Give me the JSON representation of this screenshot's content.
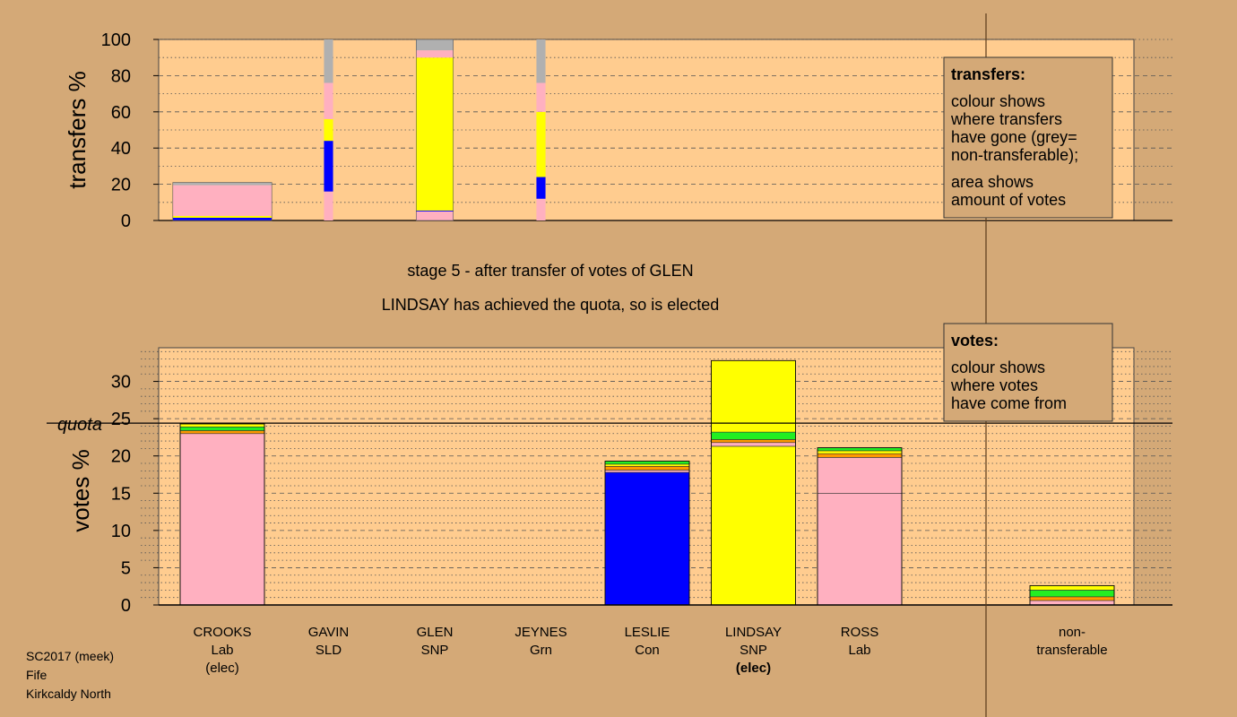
{
  "stage_title": "stage 5 - after transfer of votes of GLEN",
  "stage_subtitle": "LINDSAY has achieved the quota, so is elected",
  "footer": [
    "SC2017 (meek)",
    "Fife",
    "Kirkcaldy North"
  ],
  "colors": {
    "page": "#d4a977",
    "plot": "#ffcc8f",
    "Lab": "#ffb0c0",
    "SNP": "#ffff00",
    "Con": "#0000ff",
    "Grn": "#22ee22",
    "SLD": "#ff9900",
    "nontransferable": "#b0b0b0"
  },
  "chart_data": [
    {
      "id": "transfers",
      "type": "bar",
      "stacked": true,
      "ylabel": "transfers %",
      "ylim": [
        0,
        100
      ],
      "yticks": [
        0,
        20,
        40,
        60,
        80,
        100
      ],
      "grid": true,
      "legend": {
        "placement": "top-right",
        "title": "transfers:",
        "lines": [
          "colour shows",
          "where transfers",
          "have gone (grey=",
          "non-transferable);",
          "",
          "area shows",
          "amount of votes"
        ]
      },
      "bars": [
        {
          "candidate": "CROOKS",
          "width_votes_pct": 24.0,
          "segments": [
            {
              "party": "Con",
              "from": 0,
              "to": 1.5
            },
            {
              "party": "SNP",
              "from": 1.5,
              "to": 2.5
            },
            {
              "party": "Lab",
              "from": 2.5,
              "to": 19.5
            },
            {
              "party": "nontransferable",
              "from": 19.5,
              "to": 21
            }
          ]
        },
        {
          "candidate": "GAVIN",
          "width_votes_pct": 2.2,
          "segments": [
            {
              "party": "Lab",
              "from": 0,
              "to": 16
            },
            {
              "party": "Con",
              "from": 16,
              "to": 44
            },
            {
              "party": "SNP",
              "from": 44,
              "to": 56
            },
            {
              "party": "Lab",
              "from": 56,
              "to": 76
            },
            {
              "party": "nontransferable",
              "from": 76,
              "to": 100
            }
          ]
        },
        {
          "candidate": "GLEN",
          "width_votes_pct": 9.0,
          "segments": [
            {
              "party": "Lab",
              "from": 0,
              "to": 5
            },
            {
              "party": "Con",
              "from": 5,
              "to": 5.5
            },
            {
              "party": "SNP",
              "from": 5.5,
              "to": 90
            },
            {
              "party": "Lab",
              "from": 90,
              "to": 94
            },
            {
              "party": "nontransferable",
              "from": 94,
              "to": 100
            }
          ]
        },
        {
          "candidate": "JEYNES",
          "width_votes_pct": 2.2,
          "segments": [
            {
              "party": "Lab",
              "from": 0,
              "to": 12
            },
            {
              "party": "Con",
              "from": 12,
              "to": 24
            },
            {
              "party": "SNP",
              "from": 24,
              "to": 60
            },
            {
              "party": "Lab",
              "from": 60,
              "to": 76
            },
            {
              "party": "nontransferable",
              "from": 76,
              "to": 100
            }
          ]
        }
      ]
    },
    {
      "id": "votes",
      "type": "bar",
      "stacked": true,
      "ylabel": "votes %",
      "ylim": [
        0,
        35
      ],
      "yticks": [
        0,
        5,
        10,
        15,
        20,
        25,
        30
      ],
      "quota": 24.4,
      "quota_label": "quota",
      "grid": true,
      "legend": {
        "placement": "top-right",
        "title": "votes:",
        "lines": [
          "colour shows",
          "where votes",
          "have come from"
        ]
      },
      "categories": [
        {
          "name": "CROOKS",
          "party": "Lab",
          "status": "(elec)",
          "status_bold": false
        },
        {
          "name": "GAVIN",
          "party": "SLD",
          "status": "",
          "status_bold": false
        },
        {
          "name": "GLEN",
          "party": "SNP",
          "status": "",
          "status_bold": false
        },
        {
          "name": "JEYNES",
          "party": "Grn",
          "status": "",
          "status_bold": false
        },
        {
          "name": "LESLIE",
          "party": "Con",
          "status": "",
          "status_bold": false
        },
        {
          "name": "LINDSAY",
          "party": "SNP",
          "status": "(elec)",
          "status_bold": true
        },
        {
          "name": "ROSS",
          "party": "Lab",
          "status": "",
          "status_bold": false
        },
        {
          "name": "",
          "party": "",
          "status": "",
          "status_bold": false
        },
        {
          "name": "non-",
          "party": "transferable",
          "status": "",
          "status_bold": false
        }
      ],
      "bars": [
        {
          "slot": 0,
          "segments": [
            {
              "party": "Lab",
              "from": 0,
              "to": 23.0
            },
            {
              "party": "SLD",
              "from": 23.0,
              "to": 23.4
            },
            {
              "party": "Grn",
              "from": 23.4,
              "to": 23.9
            },
            {
              "party": "SNP",
              "from": 23.9,
              "to": 24.3
            }
          ]
        },
        {
          "slot": 4,
          "segments": [
            {
              "party": "Con",
              "from": 0,
              "to": 17.8
            },
            {
              "party": "Lab",
              "from": 17.8,
              "to": 18.1
            },
            {
              "party": "SLD",
              "from": 18.1,
              "to": 18.6
            },
            {
              "party": "SNP",
              "from": 18.6,
              "to": 18.9
            },
            {
              "party": "Grn",
              "from": 18.9,
              "to": 19.3
            }
          ]
        },
        {
          "slot": 5,
          "segments": [
            {
              "party": "SNP",
              "from": 0,
              "to": 21.3
            },
            {
              "party": "Lab",
              "from": 21.3,
              "to": 21.8
            },
            {
              "party": "SLD",
              "from": 21.8,
              "to": 22.2
            },
            {
              "party": "Grn",
              "from": 22.2,
              "to": 23.2
            },
            {
              "party": "SNP",
              "from": 23.2,
              "to": 32.8
            }
          ]
        },
        {
          "slot": 6,
          "segments": [
            {
              "party": "Lab",
              "from": 0,
              "to": 15.0
            },
            {
              "party": "Lab",
              "from": 15.0,
              "to": 19.8
            },
            {
              "party": "SLD",
              "from": 19.8,
              "to": 20.3
            },
            {
              "party": "SNP",
              "from": 20.3,
              "to": 20.7
            },
            {
              "party": "Grn",
              "from": 20.7,
              "to": 21.1
            }
          ]
        },
        {
          "slot": 8,
          "segments": [
            {
              "party": "Lab",
              "from": 0,
              "to": 0.6
            },
            {
              "party": "SLD",
              "from": 0.6,
              "to": 1.1
            },
            {
              "party": "Grn",
              "from": 1.1,
              "to": 2.0
            },
            {
              "party": "SNP",
              "from": 2.0,
              "to": 2.6
            }
          ]
        }
      ]
    }
  ]
}
